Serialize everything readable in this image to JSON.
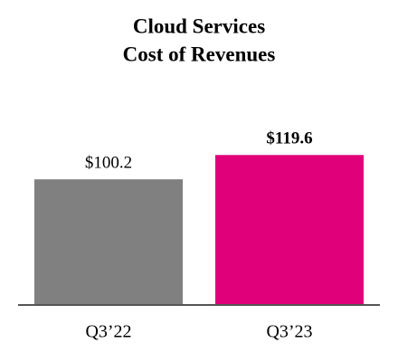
{
  "chart_data": {
    "type": "bar",
    "title": [
      "Cloud Services",
      "Cost of Revenues"
    ],
    "categories": [
      "Q3’22",
      "Q3’23"
    ],
    "values": [
      100.2,
      119.6
    ],
    "value_labels": [
      "$100.2",
      "$119.6"
    ],
    "value_label_bold": [
      false,
      true
    ],
    "colors": [
      "#808080",
      "#e0007a"
    ],
    "ylim": [
      0,
      140
    ]
  }
}
